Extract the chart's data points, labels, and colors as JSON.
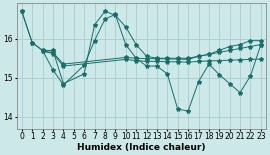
{
  "xlabel": "Humidex (Indice chaleur)",
  "background_color": "#cce8e8",
  "grid_color": "#aacccc",
  "line_color": "#1a6e6a",
  "xlim": [
    -0.5,
    23.5
  ],
  "ylim": [
    13.7,
    16.9
  ],
  "yticks": [
    14,
    15,
    16
  ],
  "xticks": [
    0,
    1,
    2,
    3,
    4,
    5,
    6,
    7,
    8,
    9,
    10,
    11,
    12,
    13,
    14,
    15,
    16,
    17,
    18,
    19,
    20,
    21,
    22,
    23
  ],
  "s1_x": [
    0,
    1,
    2,
    3,
    4,
    6,
    7,
    8,
    9,
    10,
    11,
    12,
    13,
    14,
    15,
    16,
    17,
    18,
    19,
    20,
    21,
    22,
    23
  ],
  "s1_y": [
    16.7,
    15.9,
    15.7,
    15.7,
    14.85,
    15.1,
    16.35,
    16.7,
    16.6,
    16.3,
    15.85,
    15.55,
    15.5,
    15.5,
    15.5,
    15.5,
    15.55,
    15.6,
    15.7,
    15.8,
    15.85,
    15.95,
    15.95
  ],
  "s2_x": [
    0,
    1,
    2,
    3,
    4,
    6,
    7,
    8,
    9,
    10,
    11,
    12,
    13,
    14,
    15,
    16,
    17,
    18,
    19,
    20,
    21,
    22,
    23
  ],
  "s2_y": [
    16.7,
    15.9,
    15.7,
    15.2,
    14.82,
    15.32,
    15.95,
    16.5,
    16.62,
    15.85,
    15.5,
    15.3,
    15.3,
    15.1,
    14.2,
    14.15,
    14.9,
    15.35,
    15.08,
    14.85,
    14.62,
    15.05,
    15.85
  ],
  "s3_x": [
    2,
    3,
    4,
    10,
    11,
    12,
    13,
    14,
    15,
    16,
    17,
    18,
    19,
    20,
    21,
    22,
    23
  ],
  "s3_y": [
    15.68,
    15.65,
    15.35,
    15.52,
    15.5,
    15.49,
    15.49,
    15.48,
    15.48,
    15.47,
    15.55,
    15.6,
    15.65,
    15.7,
    15.75,
    15.8,
    15.85
  ],
  "s4_x": [
    2,
    3,
    4,
    10,
    11,
    12,
    13,
    14,
    15,
    16,
    17,
    18,
    19,
    20,
    21,
    22,
    23
  ],
  "s4_y": [
    15.68,
    15.62,
    15.3,
    15.47,
    15.44,
    15.42,
    15.42,
    15.41,
    15.41,
    15.4,
    15.42,
    15.43,
    15.44,
    15.45,
    15.46,
    15.47,
    15.48
  ]
}
